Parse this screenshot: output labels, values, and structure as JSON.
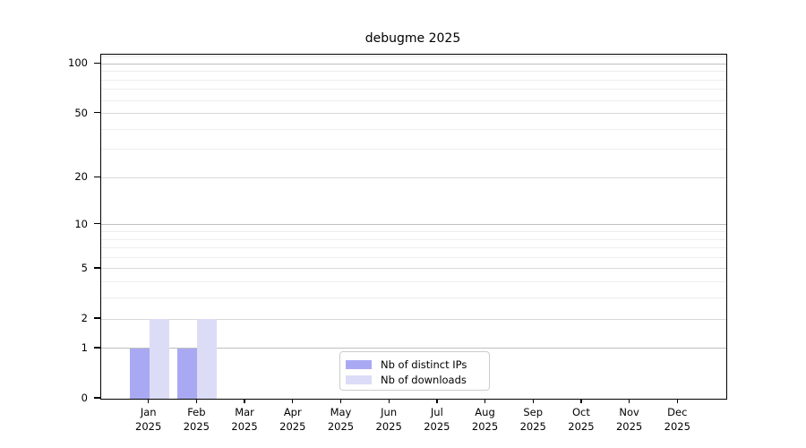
{
  "title": "debugme 2025",
  "chart_data": {
    "type": "bar",
    "title": "debugme 2025",
    "x_tick_months": [
      "Jan",
      "Feb",
      "Mar",
      "Apr",
      "May",
      "Jun",
      "Jul",
      "Aug",
      "Sep",
      "Oct",
      "Nov",
      "Dec"
    ],
    "x_tick_year": "2025",
    "series": [
      {
        "name": "Nb of distinct IPs",
        "color": "#a9a9f3",
        "values": [
          1,
          1,
          0,
          0,
          0,
          0,
          0,
          0,
          0,
          0,
          0,
          0
        ]
      },
      {
        "name": "Nb of downloads",
        "color": "#dcdcf7",
        "values": [
          2,
          2,
          0,
          0,
          0,
          0,
          0,
          0,
          0,
          0,
          0,
          0
        ]
      }
    ],
    "y_scale": "log1p",
    "y_ticks": [
      0,
      1,
      2,
      5,
      10,
      20,
      50,
      100
    ],
    "y_decade_ticks": [
      1,
      10,
      100
    ],
    "y_minor_ticks": [
      3,
      4,
      6,
      7,
      8,
      9,
      30,
      40,
      60,
      70,
      80,
      90,
      110
    ],
    "ylim": [
      0,
      113.5
    ],
    "grid": "horizontal",
    "legend": {
      "position": "lower-center",
      "labels": [
        "Nb of distinct IPs",
        "Nb of downloads"
      ]
    }
  },
  "colors": {
    "bar_distinct_ips": "#a9a9f3",
    "bar_downloads": "#dcdcf7",
    "grid_decade": "#bfbfbf",
    "grid_major": "#d9d9d9",
    "grid_minor": "#ededed",
    "axis": "#000000",
    "legend_border": "#cccccc",
    "background": "#ffffff"
  }
}
